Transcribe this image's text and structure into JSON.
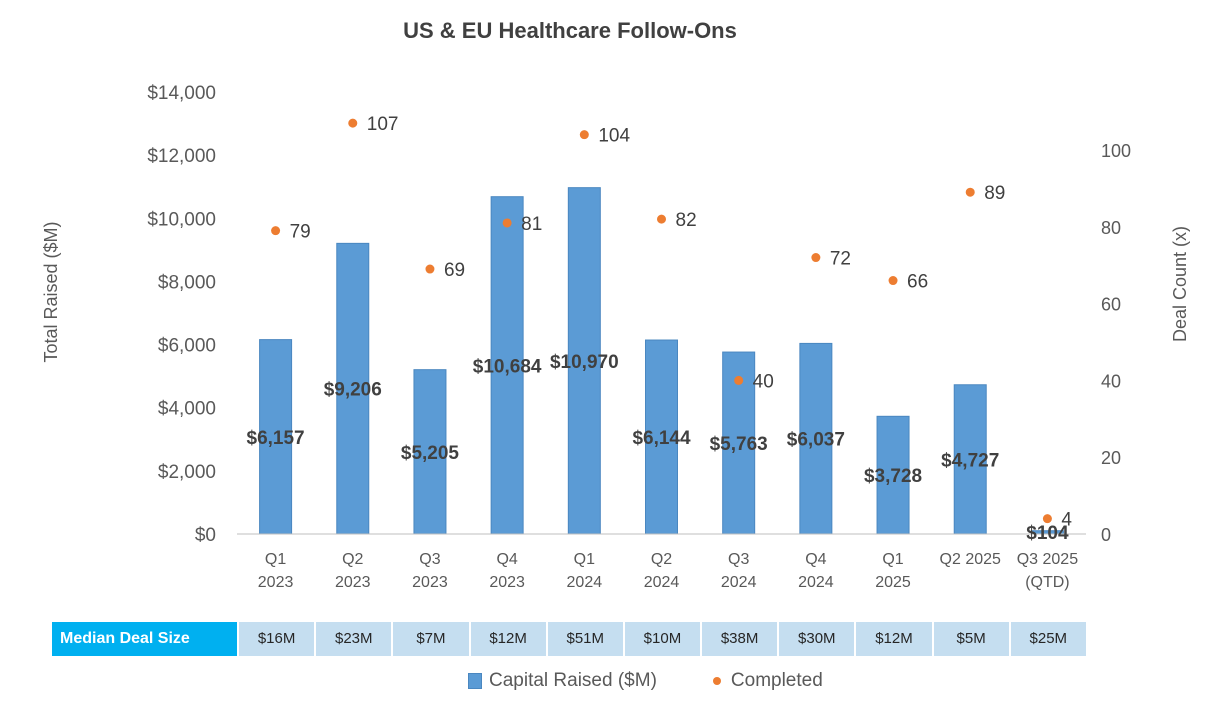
{
  "chart_data": {
    "type": "bar",
    "title": "US & EU Healthcare Follow-Ons",
    "categories": [
      [
        "Q1",
        "2023"
      ],
      [
        "Q2",
        "2023"
      ],
      [
        "Q3",
        "2023"
      ],
      [
        "Q4",
        "2023"
      ],
      [
        "Q1",
        "2024"
      ],
      [
        "Q2",
        "2024"
      ],
      [
        "Q3",
        "2024"
      ],
      [
        "Q4",
        "2024"
      ],
      [
        "Q1",
        "2025"
      ],
      [
        "Q2 2025"
      ],
      [
        "Q3 2025",
        "(QTD)"
      ]
    ],
    "series": [
      {
        "name": "Capital Raised ($M)",
        "type": "bar",
        "axis": "left",
        "color": "#5b9bd5",
        "values": [
          6157,
          9206,
          5205,
          10684,
          10970,
          6144,
          5763,
          6037,
          3728,
          4727,
          104
        ],
        "labels": [
          "$6,157",
          "$9,206",
          "$5,205",
          "$10,684",
          "$10,970",
          "$6,144",
          "$5,763",
          "$6,037",
          "$3,728",
          "$4,727",
          "$104"
        ]
      },
      {
        "name": "Completed",
        "type": "scatter",
        "axis": "right",
        "color": "#ed7d31",
        "values": [
          79,
          107,
          69,
          81,
          104,
          82,
          40,
          72,
          66,
          89,
          4
        ],
        "labels": [
          "79",
          "107",
          "69",
          "81",
          "104",
          "82",
          "40",
          "72",
          "66",
          "89",
          "4"
        ]
      }
    ],
    "ylabel": "Total Raised ($M)",
    "ylim": [
      0,
      14000
    ],
    "yticks": [
      "$0",
      "$2,000",
      "$4,000",
      "$6,000",
      "$8,000",
      "$10,000",
      "$12,000",
      "$14,000"
    ],
    "y2label": "Deal Count (x)",
    "y2lim": [
      0,
      115
    ],
    "y2ticks": [
      "0",
      "20",
      "40",
      "60",
      "80",
      "100"
    ],
    "grid": false,
    "legend_position": "bottom"
  },
  "median_table": {
    "header": "Median Deal Size",
    "values": [
      "$16M",
      "$23M",
      "$7M",
      "$12M",
      "$51M",
      "$10M",
      "$38M",
      "$30M",
      "$12M",
      "$5M",
      "$25M"
    ]
  },
  "legend": {
    "bars": "Capital Raised ($M)",
    "dots": "Completed"
  }
}
